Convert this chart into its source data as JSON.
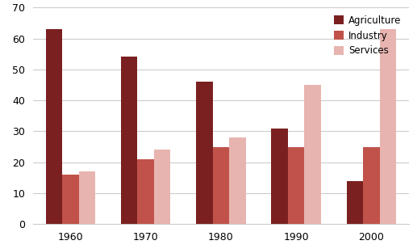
{
  "years": [
    "1960",
    "1970",
    "1980",
    "1990",
    "2000"
  ],
  "agriculture": [
    63,
    54,
    46,
    31,
    14
  ],
  "industry": [
    16,
    21,
    25,
    25,
    25
  ],
  "services": [
    17,
    24,
    28,
    45,
    63
  ],
  "agriculture_color": "#7b2020",
  "industry_color": "#c0524a",
  "services_color": "#e8b4b0",
  "ylim": [
    0,
    70
  ],
  "yticks": [
    0,
    10,
    20,
    30,
    40,
    50,
    60,
    70
  ],
  "legend_labels": [
    "Agriculture",
    "Industry",
    "Services"
  ],
  "background_color": "#ffffff",
  "grid_color": "#cccccc",
  "bar_width": 0.22
}
